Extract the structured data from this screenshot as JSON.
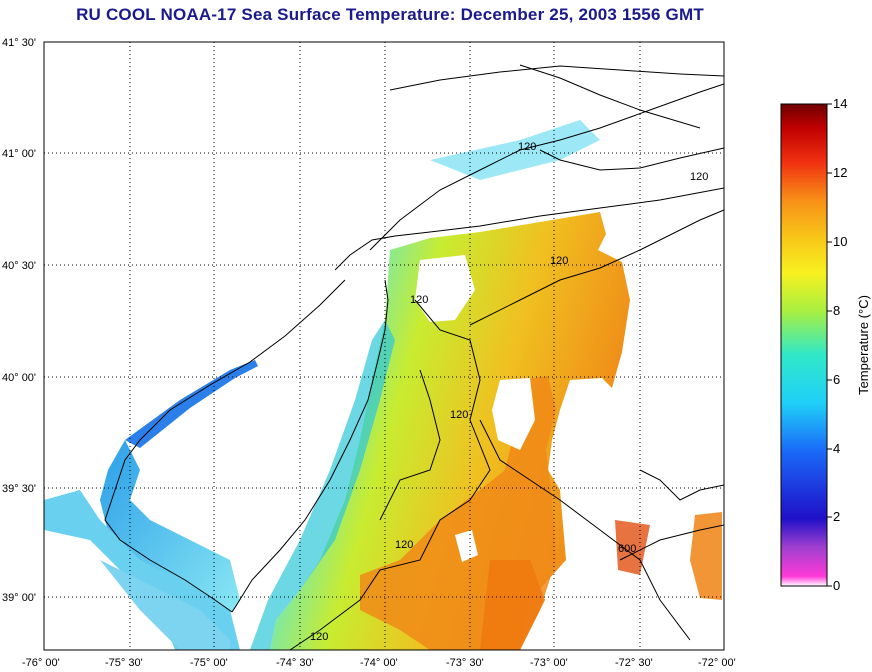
{
  "title": "RU COOL  NOAA-17  Sea Surface Temperature:  December 25, 2003 1556 GMT",
  "colorbar": {
    "label": "Temperature (°C)",
    "ticks": [
      "14",
      "12",
      "10",
      "8",
      "6",
      "4",
      "2",
      "0"
    ],
    "range": [
      0,
      14
    ]
  },
  "axes": {
    "lat_ticks": [
      "41° 30'",
      "41° 00'",
      "40° 30'",
      "40° 00'",
      "39° 30'",
      "39° 00'"
    ],
    "lon_ticks": [
      "-76° 00'",
      "-75° 30'",
      "-75° 00'",
      "-74° 30'",
      "-74° 00'",
      "-73° 30'",
      "-73° 00'",
      "-72° 30'",
      "-72° 00'"
    ]
  },
  "contours": {
    "labels": [
      "120",
      "120",
      "120",
      "120",
      "120",
      "120",
      "120",
      "600"
    ]
  },
  "colors": {
    "title": "#1a1a8c",
    "land": "#ffffff",
    "coast": "#000000",
    "grid": "#000000"
  }
}
